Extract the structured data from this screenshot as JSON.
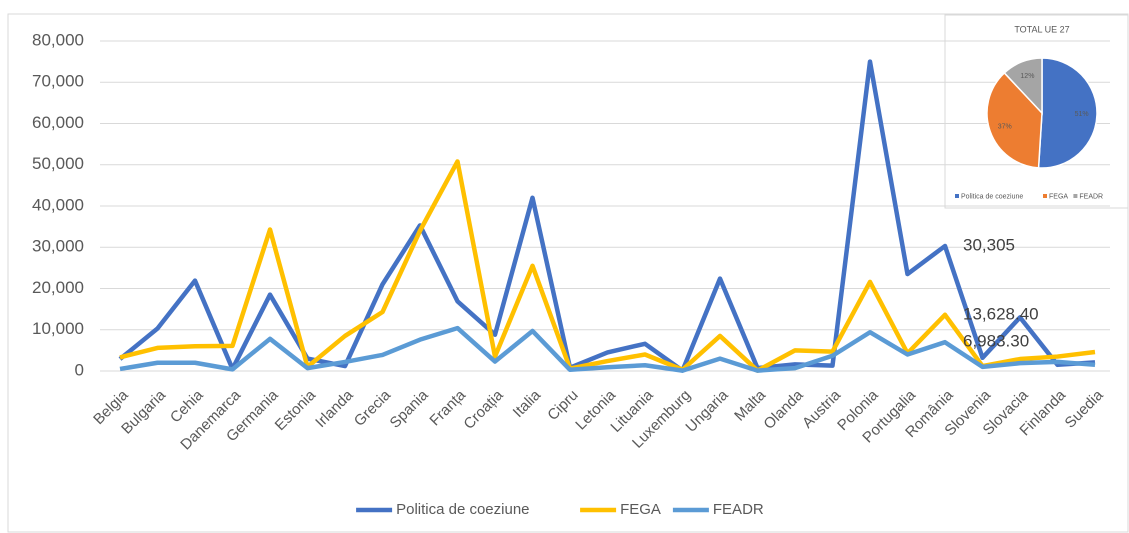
{
  "chart_data": [
    {
      "type": "line",
      "categories": [
        "Belgia",
        "Bulgaria",
        "Cehia",
        "Danemarca",
        "Germania",
        "Estonia",
        "Irlanda",
        "Grecia",
        "Spania",
        "Franța",
        "Croația",
        "Italia",
        "Cipru",
        "Letonia",
        "Lituania",
        "Luxemburg",
        "Ungaria",
        "Malta",
        "Olanda",
        "Austria",
        "Polonia",
        "Portugalia",
        "România",
        "Slovenia",
        "Slovacia",
        "Finlanda",
        "Suedia"
      ],
      "series": [
        {
          "name": "Politica de coeziune",
          "color": "#4472c4",
          "values": [
            2900,
            10300,
            21900,
            500,
            18500,
            3000,
            1200,
            21000,
            35300,
            16900,
            8800,
            42000,
            800,
            4500,
            6600,
            100,
            22400,
            700,
            1600,
            1300,
            75000,
            23500,
            30305,
            3200,
            13000,
            1500,
            2100
          ],
          "value_labels": [
            null,
            null,
            null,
            null,
            null,
            null,
            null,
            null,
            null,
            null,
            null,
            null,
            null,
            null,
            null,
            null,
            null,
            null,
            null,
            null,
            null,
            null,
            "30,305",
            null,
            null,
            null,
            null
          ]
        },
        {
          "name": "FEGA",
          "color": "#ffc000",
          "values": [
            3300,
            5600,
            6000,
            6100,
            34300,
            1000,
            8500,
            14300,
            34000,
            50800,
            3500,
            25500,
            600,
            2400,
            4000,
            300,
            8500,
            100,
            5000,
            4700,
            21600,
            4300,
            13628.4,
            1200,
            2900,
            3500,
            4600
          ],
          "value_labels": [
            null,
            null,
            null,
            null,
            null,
            null,
            null,
            null,
            null,
            null,
            null,
            null,
            null,
            null,
            null,
            null,
            null,
            null,
            null,
            null,
            null,
            null,
            "13,628.40",
            null,
            null,
            null,
            null
          ]
        },
        {
          "name": "FEADR",
          "color": "#5b9bd5",
          "values": [
            500,
            2000,
            2000,
            400,
            7800,
            700,
            2200,
            3900,
            7600,
            10400,
            2300,
            9700,
            300,
            900,
            1400,
            100,
            3000,
            100,
            700,
            3700,
            9400,
            4000,
            6983.3,
            1000,
            1900,
            2200,
            1500
          ],
          "value_labels": [
            null,
            null,
            null,
            null,
            null,
            null,
            null,
            null,
            null,
            null,
            null,
            null,
            null,
            null,
            null,
            null,
            null,
            null,
            null,
            null,
            null,
            null,
            "6,983.30",
            null,
            null,
            null,
            null
          ]
        }
      ],
      "ylim": [
        0,
        80000
      ],
      "yticks": [
        0,
        {
          "value": 10000,
          "label": "10,000"
        },
        {
          "value": 20000,
          "label": "20,000"
        },
        {
          "value": 30000,
          "label": "30,000"
        },
        {
          "value": 40000,
          "label": "40,000"
        },
        {
          "value": 50000,
          "label": "50,000"
        },
        {
          "value": 60000,
          "label": "60,000"
        },
        {
          "value": 70000,
          "label": "70,000"
        },
        {
          "value": 80000,
          "label": "80,000"
        }
      ],
      "legend": "bottom"
    },
    {
      "type": "pie",
      "title": "TOTAL UE 27",
      "categories": [
        "Politica de coeziune",
        "FEGA",
        "FEADR"
      ],
      "values": [
        51,
        37,
        12
      ],
      "value_labels": [
        "51%",
        "37%",
        "12%"
      ],
      "colors": [
        "#4472c4",
        "#ed7d31",
        "#a5a5a5"
      ],
      "legend": "bottom"
    }
  ]
}
